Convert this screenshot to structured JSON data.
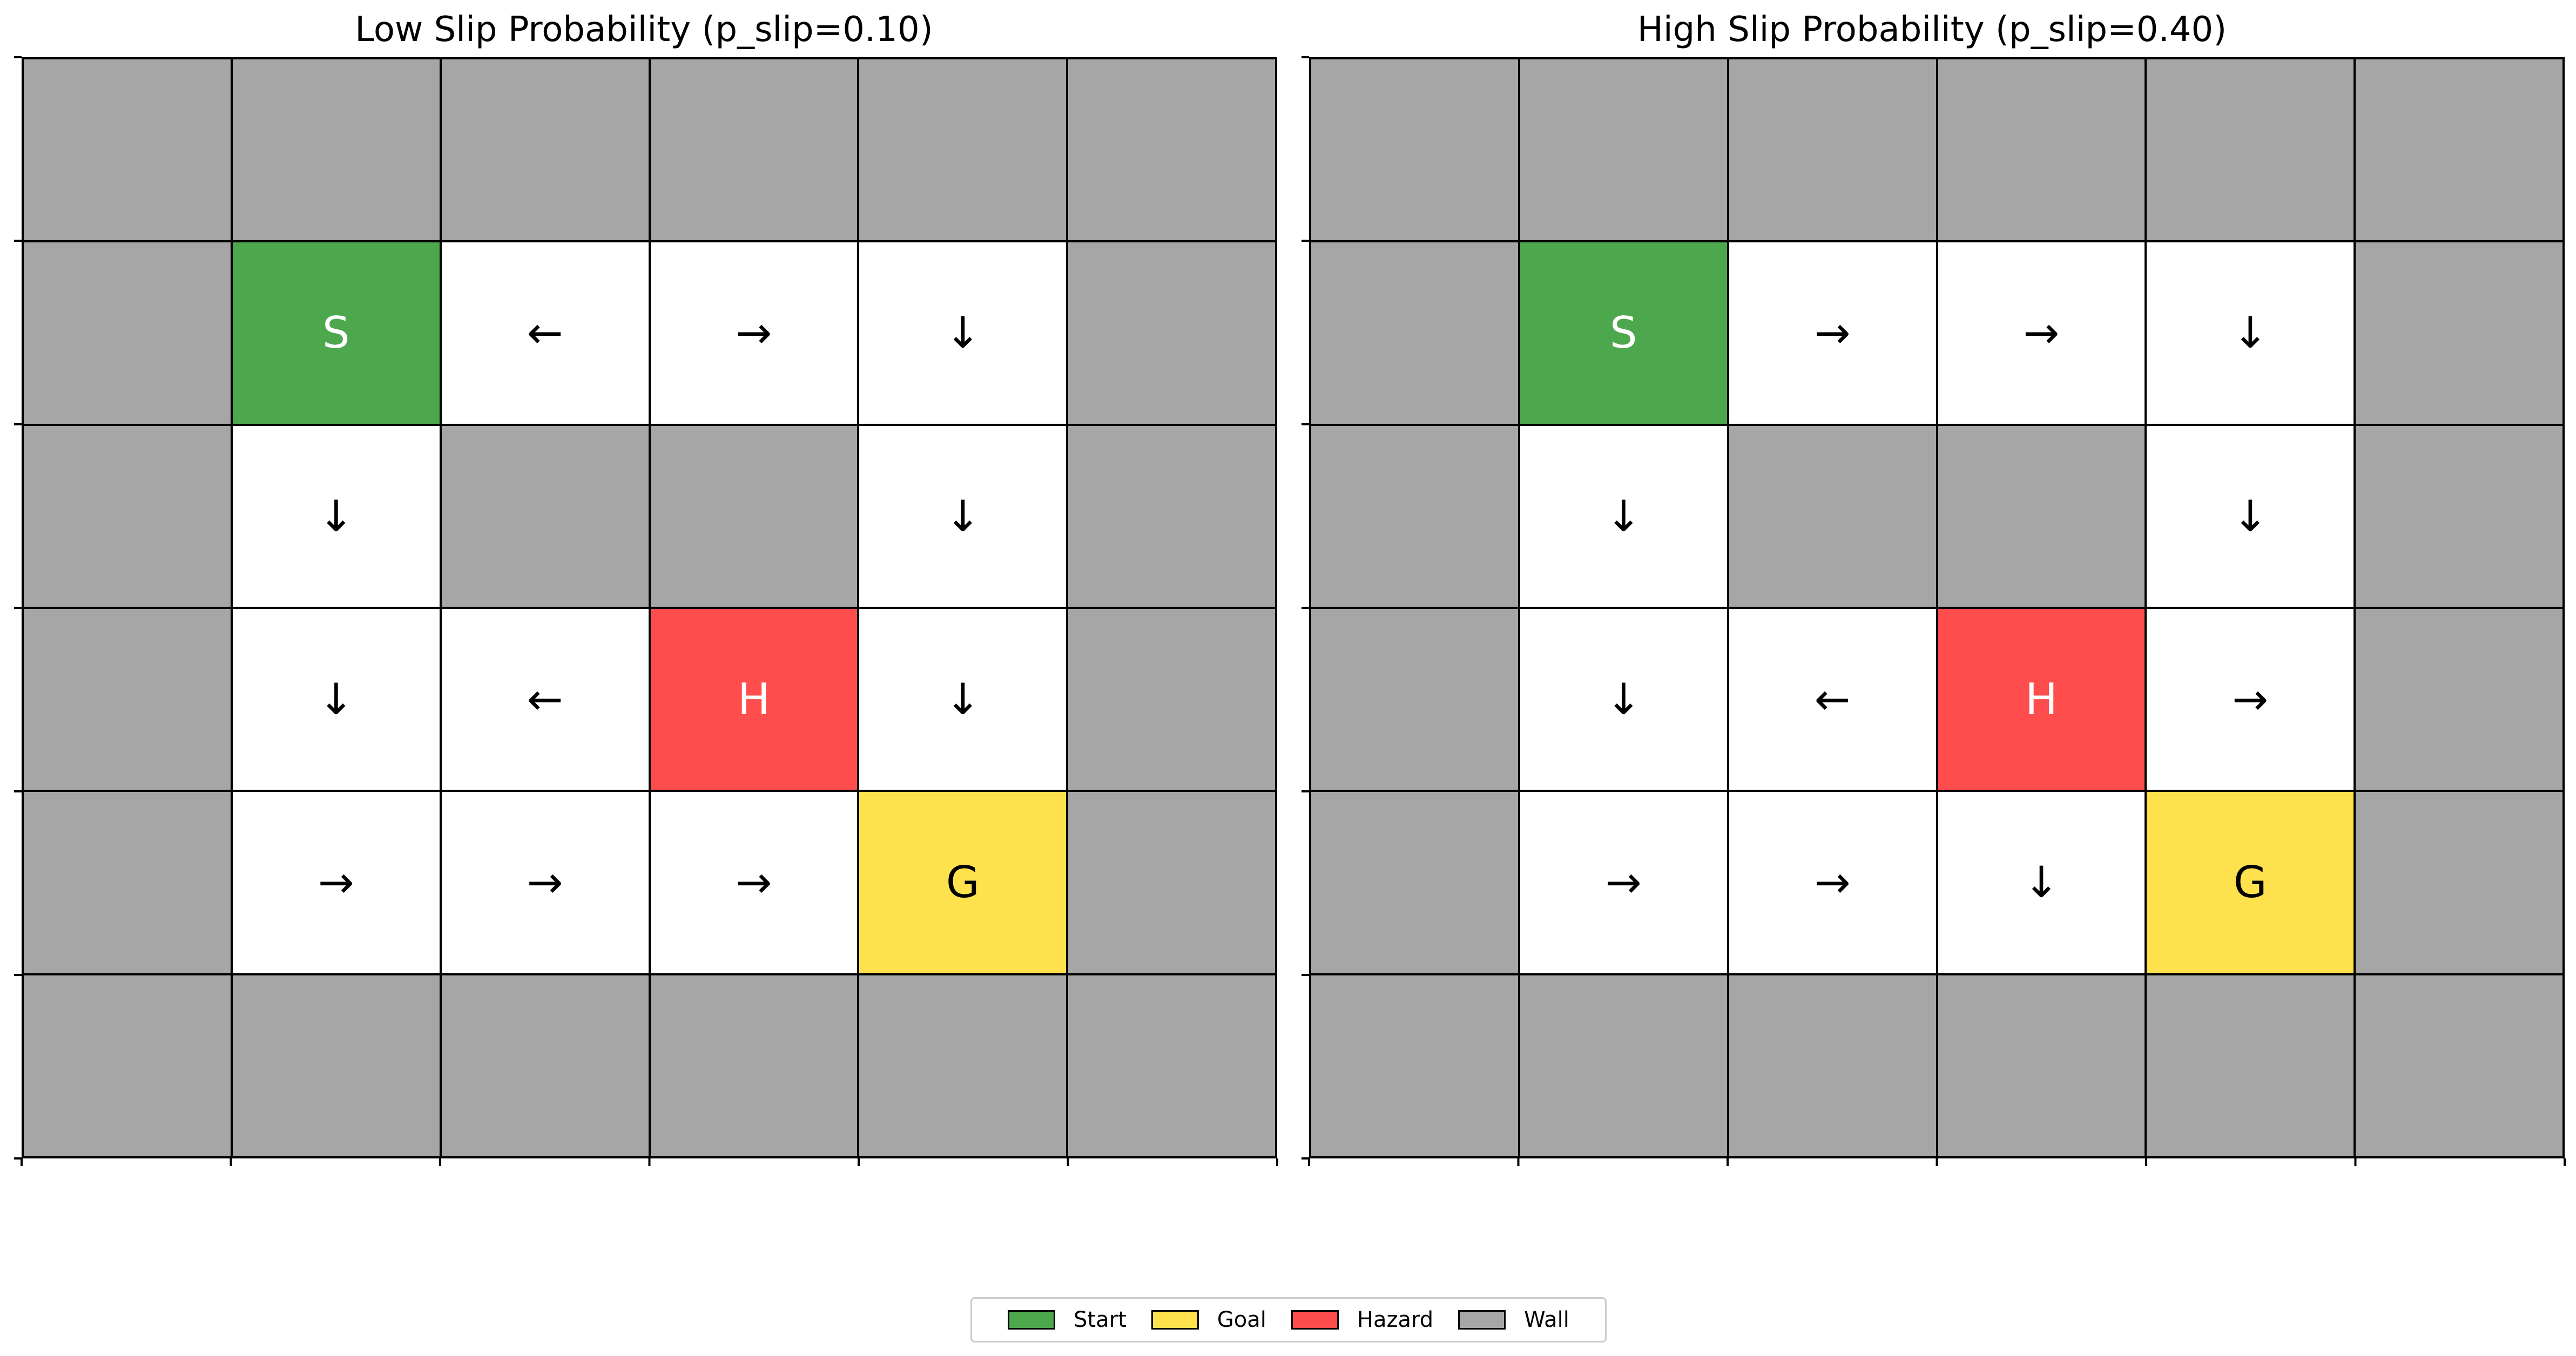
{
  "colors": {
    "start": "#4da84d",
    "goal": "#ffe14d",
    "hazard": "#ff4d4d",
    "wall": "#a6a6a6",
    "free": "#ffffff"
  },
  "panels": [
    {
      "title": "Low Slip Probability (p_slip=0.10)",
      "grid": [
        [
          "wall",
          "wall",
          "wall",
          "wall",
          "wall",
          "wall"
        ],
        [
          "wall",
          "start",
          "free",
          "free",
          "free",
          "wall"
        ],
        [
          "wall",
          "free",
          "wall",
          "wall",
          "free",
          "wall"
        ],
        [
          "wall",
          "free",
          "free",
          "hazard",
          "free",
          "wall"
        ],
        [
          "wall",
          "free",
          "free",
          "free",
          "goal",
          "wall"
        ],
        [
          "wall",
          "wall",
          "wall",
          "wall",
          "wall",
          "wall"
        ]
      ],
      "labels": [
        [
          "",
          "",
          "",
          "",
          "",
          ""
        ],
        [
          "",
          "S",
          "←",
          "→",
          "↓",
          ""
        ],
        [
          "",
          "↓",
          "",
          "",
          "↓",
          ""
        ],
        [
          "",
          "↓",
          "←",
          "H",
          "↓",
          ""
        ],
        [
          "",
          "→",
          "→",
          "→",
          "G",
          ""
        ],
        [
          "",
          "",
          "",
          "",
          "",
          ""
        ]
      ]
    },
    {
      "title": "High Slip Probability (p_slip=0.40)",
      "grid": [
        [
          "wall",
          "wall",
          "wall",
          "wall",
          "wall",
          "wall"
        ],
        [
          "wall",
          "start",
          "free",
          "free",
          "free",
          "wall"
        ],
        [
          "wall",
          "free",
          "wall",
          "wall",
          "free",
          "wall"
        ],
        [
          "wall",
          "free",
          "free",
          "hazard",
          "free",
          "wall"
        ],
        [
          "wall",
          "free",
          "free",
          "free",
          "goal",
          "wall"
        ],
        [
          "wall",
          "wall",
          "wall",
          "wall",
          "wall",
          "wall"
        ]
      ],
      "labels": [
        [
          "",
          "",
          "",
          "",
          "",
          ""
        ],
        [
          "",
          "S",
          "→",
          "→",
          "↓",
          ""
        ],
        [
          "",
          "↓",
          "",
          "",
          "↓",
          ""
        ],
        [
          "",
          "↓",
          "←",
          "H",
          "→",
          ""
        ],
        [
          "",
          "→",
          "→",
          "↓",
          "G",
          ""
        ],
        [
          "",
          "",
          "",
          "",
          "",
          ""
        ]
      ]
    }
  ],
  "legend": {
    "items": [
      {
        "key": "start",
        "label": "Start"
      },
      {
        "key": "goal",
        "label": "Goal"
      },
      {
        "key": "hazard",
        "label": "Hazard"
      },
      {
        "key": "wall",
        "label": "Wall"
      }
    ]
  }
}
